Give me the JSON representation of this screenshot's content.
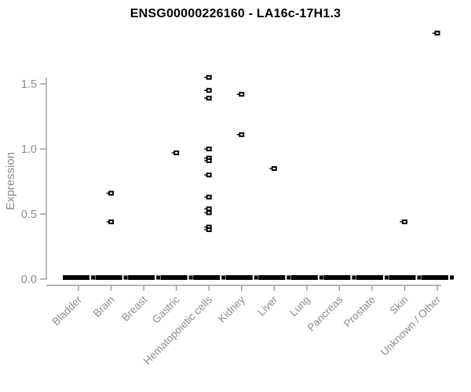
{
  "title": "ENSG00000226160 - LA16c-17H1.3",
  "chart_data": {
    "type": "scatter",
    "title": "ENSG00000226160 - LA16c-17H1.3",
    "xlabel": "",
    "ylabel": "Expression",
    "ylim": [
      0,
      1.5
    ],
    "yticks": [
      "0.0",
      "0.5",
      "1.0",
      "1.5"
    ],
    "ytick_values": [
      0.0,
      0.5,
      1.0,
      1.5
    ],
    "grid": false,
    "legend_position": "none",
    "marker": "open-square",
    "categories": [
      "Bladder",
      "Brain",
      "Breast",
      "Gastric",
      "Hematopoietic cells",
      "Kidney",
      "Liver",
      "Lung",
      "Pancreas",
      "Prostate",
      "Skin",
      "Unknown / Other"
    ],
    "series": [
      {
        "name": "Bladder",
        "values": []
      },
      {
        "name": "Brain",
        "values": [
          0.66,
          0.44
        ]
      },
      {
        "name": "Breast",
        "values": []
      },
      {
        "name": "Gastric",
        "values": [
          0.97
        ]
      },
      {
        "name": "Hematopoietic cells",
        "values": [
          1.55,
          1.45,
          1.39,
          1.0,
          0.93,
          0.91,
          0.8,
          0.63,
          0.54,
          0.51,
          0.4,
          0.38
        ]
      },
      {
        "name": "Kidney",
        "values": [
          1.42,
          1.11
        ]
      },
      {
        "name": "Liver",
        "values": [
          0.85
        ]
      },
      {
        "name": "Lung",
        "values": []
      },
      {
        "name": "Pancreas",
        "values": []
      },
      {
        "name": "Prostate",
        "values": []
      },
      {
        "name": "Skin",
        "values": [
          0.44
        ]
      },
      {
        "name": "Unknown / Other",
        "values": [
          1.89
        ]
      }
    ],
    "zero_cluster": {
      "note": "every category shows a dense overlapping cluster of points at expression 0, drawn as a thick black dash",
      "value": 0.0,
      "present_in_all_categories": true
    },
    "colors": {
      "point": "#000000",
      "marker_slit": "#ffffff",
      "axis": "#9b9b9b",
      "tick_label": "#8c8c8c",
      "title": "#000000",
      "background": "#ffffff"
    }
  }
}
